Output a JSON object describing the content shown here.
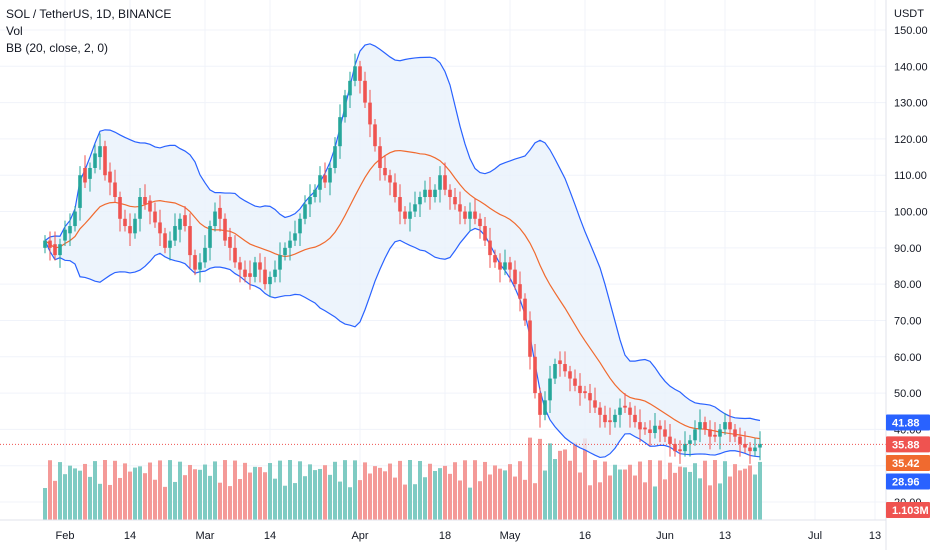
{
  "header": {
    "symbol_line": "SOL / TetherUS, 1D, BINANCE",
    "volume_label": "Vol",
    "indicator_label": "BB (20, close, 2, 0)"
  },
  "chart_data": {
    "type": "candlestick",
    "ylabel": "USDT",
    "ylim": [
      16,
      151
    ],
    "y_ticks": [
      20,
      30,
      40,
      50,
      60,
      70,
      80,
      90,
      100,
      110,
      120,
      130,
      140,
      150
    ],
    "y_tick_labels": [
      "20.00",
      "30.00",
      "40.00",
      "50.00",
      "60.00",
      "70.00",
      "80.00",
      "90.00",
      "100.00",
      "110.00",
      "120.00",
      "130.00",
      "140.00",
      "150.00"
    ],
    "x_tick_labels": [
      {
        "label": "Feb",
        "index": 4
      },
      {
        "label": "14",
        "index": 17
      },
      {
        "label": "Mar",
        "index": 32
      },
      {
        "label": "14",
        "index": 45
      },
      {
        "label": "Apr",
        "index": 63
      },
      {
        "label": "18",
        "index": 80
      },
      {
        "label": "May",
        "index": 93
      },
      {
        "label": "16",
        "index": 108
      },
      {
        "label": "Jun",
        "index": 124
      },
      {
        "label": "13",
        "index": 136
      },
      {
        "label": "Jul",
        "index": 154
      },
      {
        "label": "13",
        "index": 166
      }
    ],
    "candles_close": [
      92,
      90,
      88,
      91,
      95,
      96,
      100,
      110,
      108,
      112,
      116,
      118,
      110,
      108,
      104,
      98,
      96,
      94,
      98,
      104,
      102,
      100,
      97,
      94,
      90,
      92,
      96,
      98,
      96,
      88,
      84,
      86,
      90,
      96,
      100,
      98,
      92,
      90,
      86,
      84,
      82,
      82,
      86,
      84,
      80,
      82,
      84,
      88,
      90,
      92,
      94,
      98,
      102,
      104,
      106,
      110,
      108,
      112,
      118,
      126,
      132,
      136,
      140,
      136,
      130,
      124,
      118,
      112,
      110,
      108,
      104,
      100,
      98,
      100,
      102,
      104,
      106,
      104,
      106,
      110,
      106,
      104,
      102,
      100,
      98,
      100,
      98,
      96,
      92,
      88,
      86,
      84,
      86,
      84,
      80,
      76,
      70,
      60,
      50,
      44,
      48,
      54,
      58,
      58,
      56,
      54,
      52,
      50,
      50,
      48,
      46,
      44,
      42,
      42,
      44,
      46,
      46,
      44,
      42,
      40,
      40,
      39,
      41,
      40,
      38,
      36,
      34,
      34,
      36,
      37,
      40,
      42,
      40,
      38,
      38,
      40,
      42,
      40,
      38,
      36,
      35,
      34,
      35,
      36
    ],
    "open_offsets": [
      -2,
      2,
      3,
      -3,
      -3,
      -2,
      -4,
      -9,
      4,
      -3,
      -4,
      -3,
      8,
      3,
      4,
      6,
      2,
      2,
      -4,
      -6,
      2,
      3,
      3,
      3,
      4,
      -2,
      -4,
      -3,
      3,
      8,
      4,
      -2,
      -4,
      -6,
      -4,
      3,
      6,
      3,
      4,
      2,
      2,
      1,
      -4,
      2,
      4,
      -2,
      -2,
      -4,
      -2,
      -2,
      -2,
      -4,
      -4,
      -2,
      -2,
      -4,
      2,
      -4,
      -6,
      -8,
      -6,
      -4,
      -4,
      4,
      6,
      6,
      6,
      6,
      2,
      2,
      4,
      4,
      2,
      -2,
      -2,
      -2,
      -2,
      2,
      -2,
      -4,
      4,
      2,
      2,
      2,
      2,
      -2,
      2,
      2,
      4,
      4,
      2,
      2,
      -2,
      2,
      4,
      4,
      6,
      10,
      10,
      6,
      -4,
      -6,
      -4,
      1,
      2,
      2,
      2,
      2,
      0.5,
      2,
      2,
      2,
      2,
      0.5,
      -2,
      -2,
      0.5,
      2,
      2,
      2,
      0.5,
      1,
      -2,
      1,
      2,
      2,
      2,
      0.5,
      -2,
      -1,
      -3,
      -2,
      2,
      2,
      0.5,
      -2,
      -2,
      2,
      2,
      2,
      1,
      1,
      -1,
      -1
    ],
    "close_labels": [
      "41.88",
      "35.88",
      "35.42",
      "28.96",
      "1.103M"
    ],
    "bb": {
      "period": 20,
      "source": "close",
      "mult": 2,
      "offset": 0
    },
    "series_colors": {
      "up": "#26a69a",
      "down": "#ef5350",
      "vol_up": "#7fcbc3",
      "vol_down": "#f49a98",
      "bb_mid": "#f06a2f",
      "bb_band": "#2962ff",
      "bb_fill": "#e8f1fb",
      "current_price": "#ef5350",
      "upper_badge": "#2962ff",
      "mid_badge": "#f06a2f",
      "lower_badge": "#2962ff",
      "vol_badge": "#ef5350"
    }
  }
}
